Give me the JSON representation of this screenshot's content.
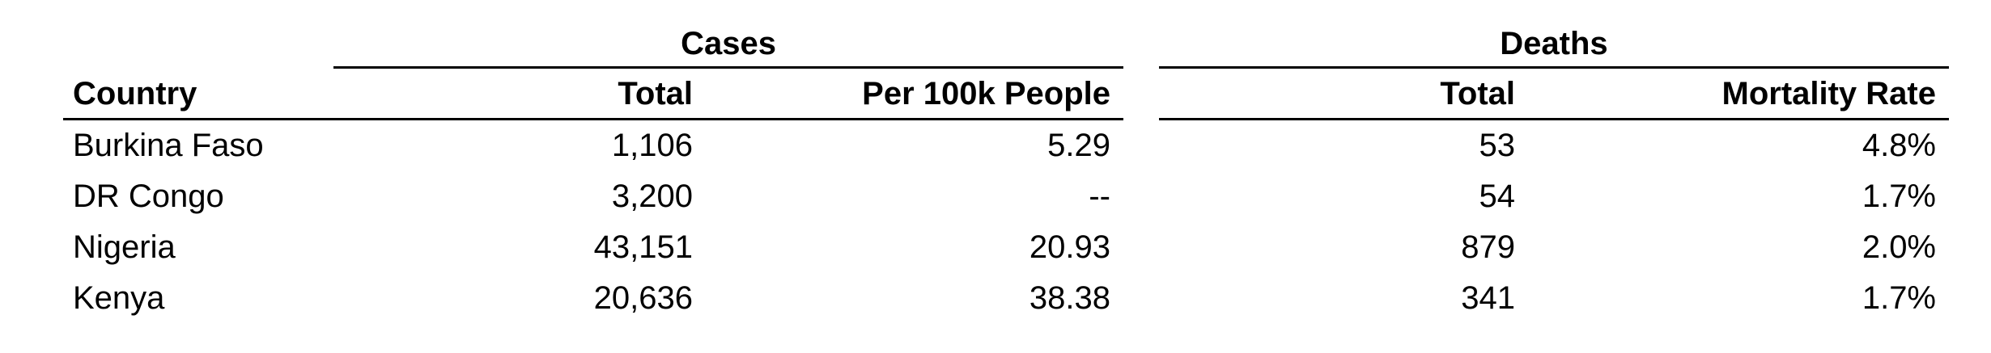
{
  "table": {
    "groups": {
      "cases": "Cases",
      "deaths": "Deaths"
    },
    "headers": {
      "country": "Country",
      "cases_total": "Total",
      "cases_per_100k": "Per 100k People",
      "deaths_total": "Total",
      "mortality_rate": "Mortality Rate"
    },
    "rows": [
      {
        "country": "Burkina Faso",
        "cases_total": "1,106",
        "cases_per_100k": "5.29",
        "deaths_total": "53",
        "mortality_rate": "4.8%"
      },
      {
        "country": "DR Congo",
        "cases_total": "3,200",
        "cases_per_100k": "--",
        "deaths_total": "54",
        "mortality_rate": "1.7%"
      },
      {
        "country": "Nigeria",
        "cases_total": "43,151",
        "cases_per_100k": "20.93",
        "deaths_total": "879",
        "mortality_rate": "2.0%"
      },
      {
        "country": "Kenya",
        "cases_total": "20,636",
        "cases_per_100k": "38.38",
        "deaths_total": "341",
        "mortality_rate": "1.7%"
      }
    ]
  }
}
